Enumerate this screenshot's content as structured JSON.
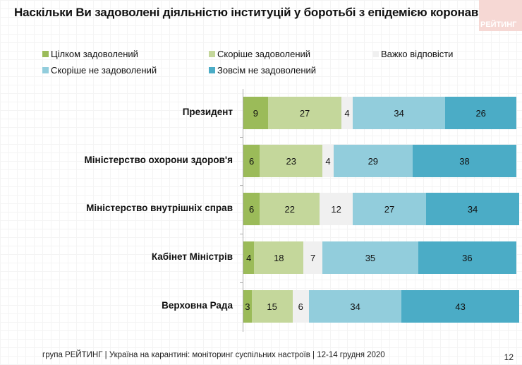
{
  "chart_data": {
    "type": "bar",
    "orientation": "horizontal",
    "stacked": true,
    "title": "Наскільки Ви задоволені діяльністю інституцій у боротьбі з епідемією коронавірусу?",
    "categories": [
      "Президент",
      "Міністерство охорони здоров'я",
      "Міністерство внутрішніх справ",
      "Кабінет Міністрів",
      "Верховна Рада"
    ],
    "series": [
      {
        "name": "Цілком задоволений",
        "color": "#9bbb59",
        "values": [
          9,
          6,
          6,
          4,
          3
        ]
      },
      {
        "name": "Скоріше задоволений",
        "color": "#c4d79b",
        "values": [
          27,
          23,
          22,
          18,
          15
        ]
      },
      {
        "name": "Важко відповісти",
        "color": "#f0f0f0",
        "values": [
          4,
          4,
          12,
          7,
          6
        ]
      },
      {
        "name": "Скоріше не задоволений",
        "color": "#92cddc",
        "values": [
          34,
          29,
          27,
          35,
          34
        ]
      },
      {
        "name": "Зовсім не задоволений",
        "color": "#4bacc6",
        "values": [
          26,
          38,
          34,
          36,
          43
        ]
      }
    ],
    "legend_position": "top",
    "grid": false
  },
  "logo_text": "РЕЙТИНГ",
  "footer": "група РЕЙТИНГ | Україна на карантині: моніторинг суспільних настроїв | 12-14 грудня 2020",
  "page_number": "12"
}
